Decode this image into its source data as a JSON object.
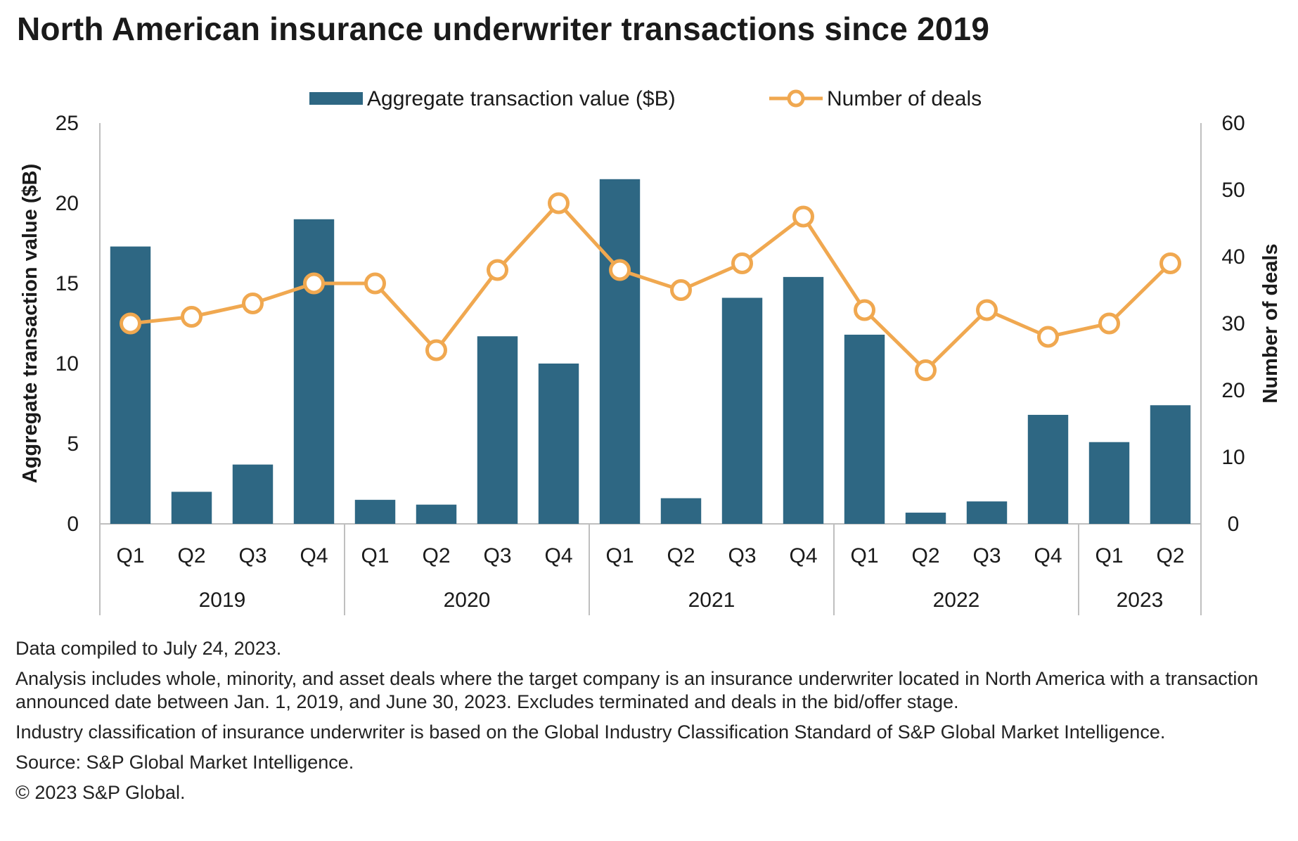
{
  "title": "North American insurance underwriter transactions since 2019",
  "chart_data": {
    "type": "bar",
    "categories": [
      "Q1",
      "Q2",
      "Q3",
      "Q4",
      "Q1",
      "Q2",
      "Q3",
      "Q4",
      "Q1",
      "Q2",
      "Q3",
      "Q4",
      "Q1",
      "Q2",
      "Q3",
      "Q4",
      "Q1",
      "Q2"
    ],
    "groups": [
      {
        "label": "2019",
        "count": 4
      },
      {
        "label": "2020",
        "count": 4
      },
      {
        "label": "2021",
        "count": 4
      },
      {
        "label": "2022",
        "count": 4
      },
      {
        "label": "2023",
        "count": 2
      }
    ],
    "series": [
      {
        "name": "Aggregate transaction value ($B)",
        "type": "bar",
        "axis": "left",
        "color": "#2e6783",
        "values": [
          17.3,
          2.0,
          3.7,
          19.0,
          1.5,
          1.2,
          11.7,
          10.0,
          21.5,
          1.6,
          14.1,
          15.4,
          11.8,
          0.7,
          1.4,
          6.8,
          5.1,
          7.4
        ]
      },
      {
        "name": "Number of deals",
        "type": "line",
        "axis": "right",
        "color": "#f0a850",
        "values": [
          30,
          31,
          33,
          36,
          36,
          26,
          38,
          48,
          38,
          35,
          39,
          46,
          32,
          23,
          32,
          28,
          30,
          39
        ]
      }
    ],
    "ylabel": "Aggregate transaction value ($B)",
    "ylim": [
      0,
      25
    ],
    "yticks": [
      0,
      5,
      10,
      15,
      20,
      25
    ],
    "y2label": "Number of deals",
    "y2lim": [
      0,
      60
    ],
    "y2ticks": [
      0,
      10,
      20,
      30,
      40,
      50,
      60
    ],
    "legend": "top-center",
    "grid": false
  },
  "notes": [
    "Data compiled to July 24, 2023.",
    "Analysis includes whole, minority, and asset deals where the target company is an insurance underwriter located in North America with a transaction announced date between Jan. 1, 2019, and June 30, 2023. Excludes terminated and deals in the bid/offer stage.",
    "Industry classification of insurance underwriter is based on the Global Industry Classification Standard of S&P Global Market Intelligence.",
    "Source: S&P Global Market Intelligence.",
    "© 2023 S&P Global."
  ]
}
